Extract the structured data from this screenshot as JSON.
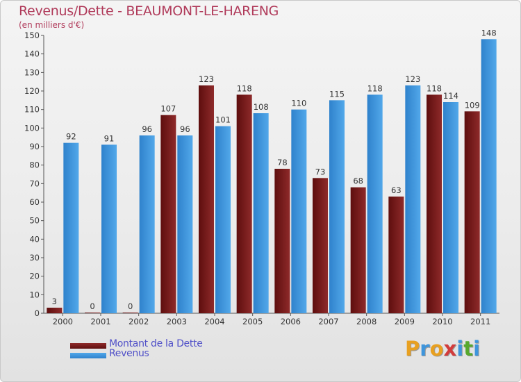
{
  "title": "Revenus/Dette - BEAUMONT-LE-HARENG",
  "subtitle": "(en milliers d'€)",
  "chart_data": {
    "type": "bar",
    "categories": [
      "2000",
      "2001",
      "2002",
      "2003",
      "2004",
      "2005",
      "2006",
      "2007",
      "2008",
      "2009",
      "2010",
      "2011"
    ],
    "series": [
      {
        "name": "Montant de la Dette",
        "values": [
          3,
          0,
          0,
          107,
          123,
          118,
          78,
          73,
          68,
          63,
          118,
          109
        ],
        "color": "#7a1c1c"
      },
      {
        "name": "Revenus",
        "values": [
          92,
          91,
          96,
          96,
          101,
          108,
          110,
          115,
          118,
          123,
          114,
          148
        ],
        "color": "#3e95dc"
      }
    ],
    "ylim": [
      0,
      150
    ],
    "yticks": [
      0,
      10,
      20,
      30,
      40,
      50,
      60,
      70,
      80,
      90,
      100,
      110,
      120,
      130,
      140,
      150
    ],
    "grid": false,
    "legend": "bottom-left"
  },
  "logo": {
    "letters": [
      "P",
      "r",
      "o",
      "x",
      "i",
      "t",
      "i"
    ],
    "colors": [
      "#e8a020",
      "#3e95dc",
      "#e8a020",
      "#d23c3c",
      "#3e95dc",
      "#58a82e",
      "#3e95dc"
    ]
  }
}
